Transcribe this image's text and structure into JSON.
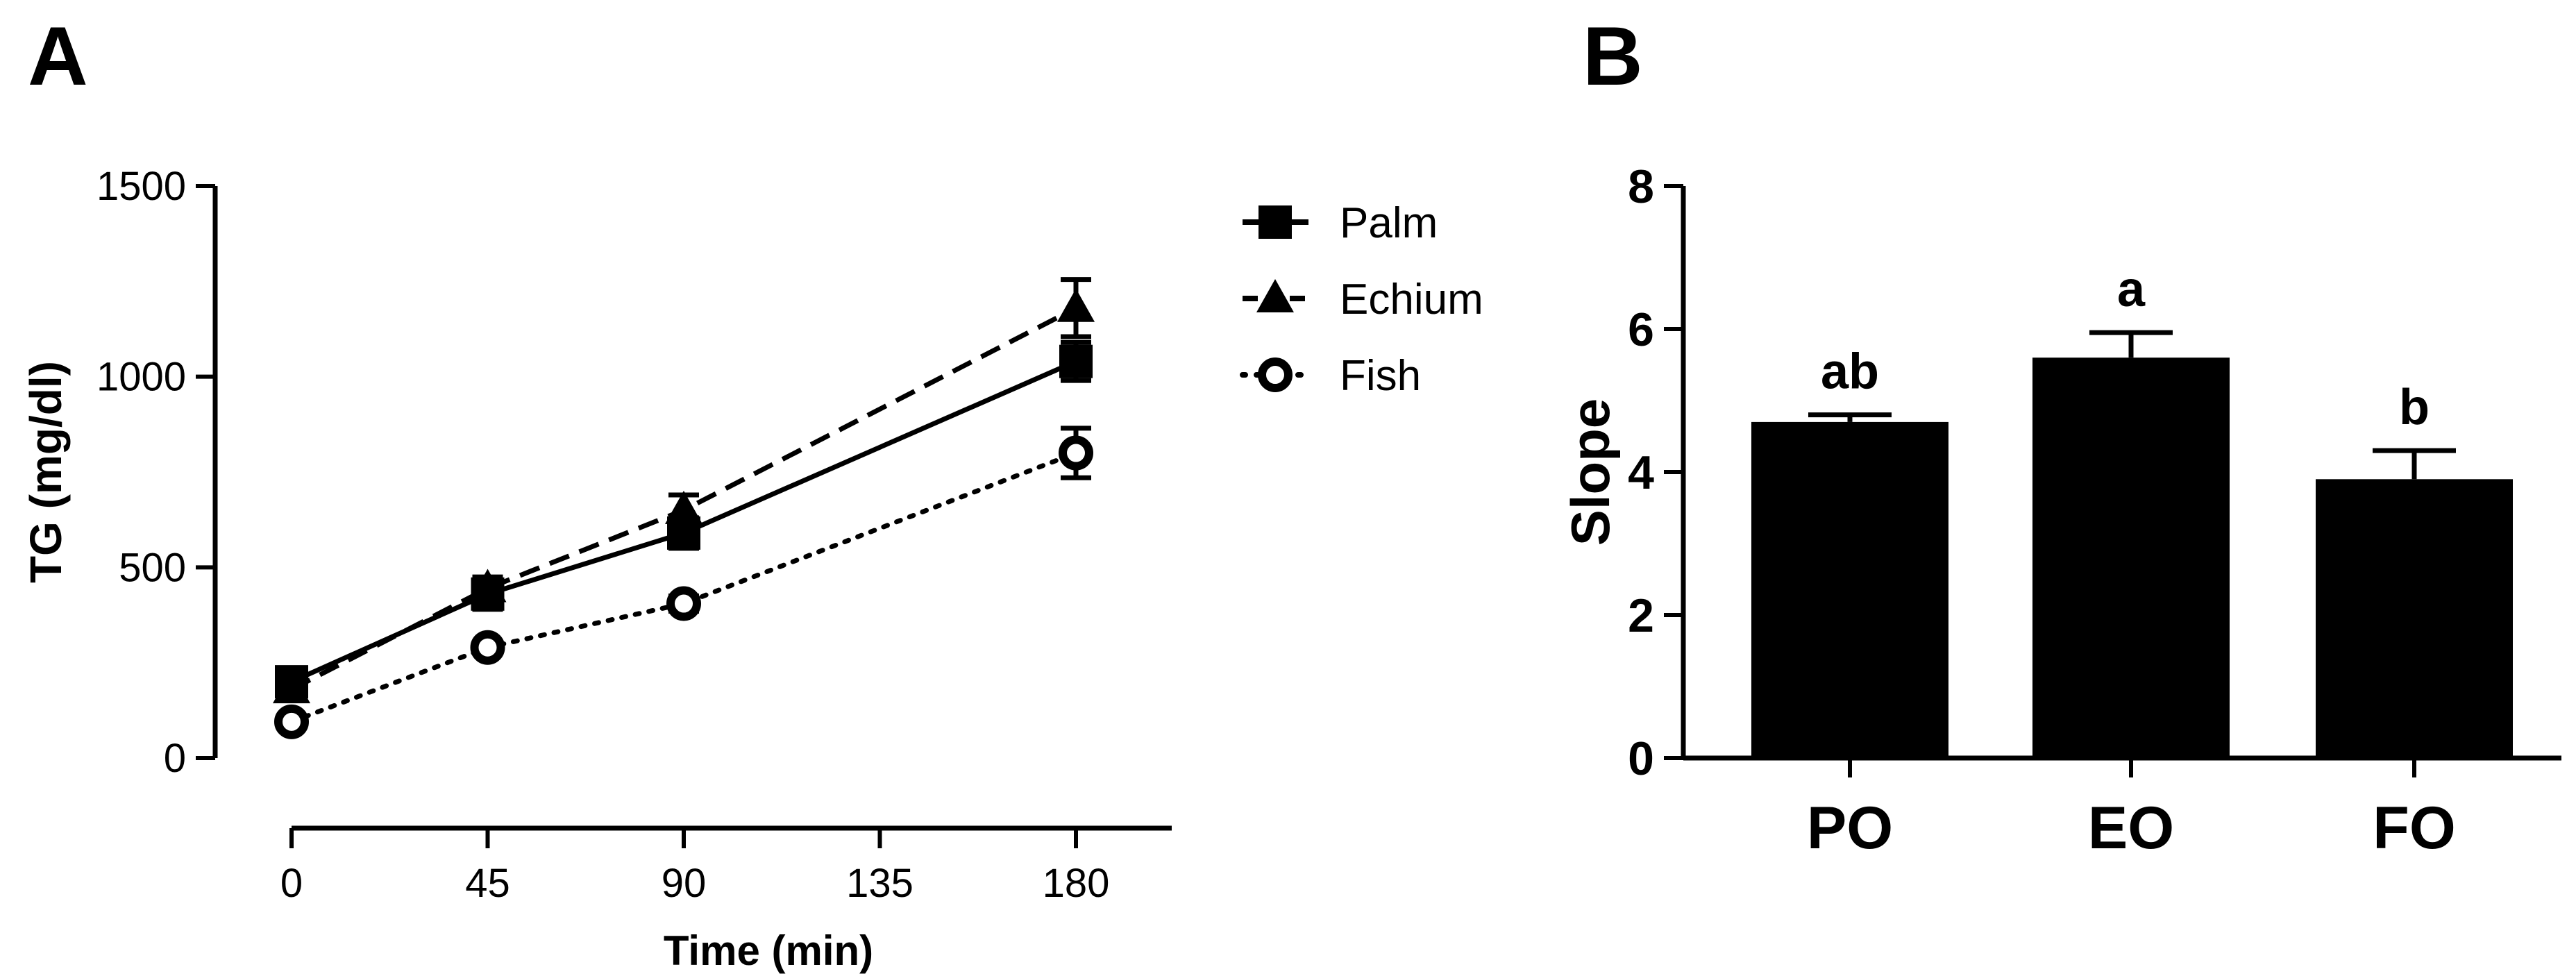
{
  "chart_data": [
    {
      "panel_label": "A",
      "type": "line",
      "title": "",
      "xlabel": "Time (min)",
      "ylabel": "TG (mg/dl)",
      "x": [
        0,
        45,
        90,
        180
      ],
      "xticks": [
        "0",
        "45",
        "90",
        "135",
        "180"
      ],
      "xtick_values": [
        0,
        45,
        90,
        135,
        180
      ],
      "xlim": [
        0,
        200
      ],
      "yticks": [
        "0",
        "500",
        "1000",
        "1500"
      ],
      "ytick_values": [
        0,
        500,
        1000,
        1500
      ],
      "ylim": [
        0,
        1500
      ],
      "legend_position": "top-right",
      "series": [
        {
          "name": "Palm",
          "marker": "square",
          "line_style": "solid",
          "values": [
            200,
            430,
            590,
            1040
          ],
          "errors": [
            20,
            40,
            40,
            50
          ]
        },
        {
          "name": "Echium",
          "marker": "triangle",
          "line_style": "dashed",
          "values": [
            180,
            445,
            650,
            1180
          ],
          "errors": [
            20,
            30,
            40,
            75
          ]
        },
        {
          "name": "Fish",
          "marker": "circle",
          "line_style": "dotted",
          "values": [
            95,
            290,
            405,
            800
          ],
          "errors": [
            15,
            15,
            20,
            65
          ]
        }
      ]
    },
    {
      "panel_label": "B",
      "type": "bar",
      "title": "",
      "xlabel": "",
      "ylabel": "Slope",
      "categories": [
        "PO",
        "EO",
        "FO"
      ],
      "values": [
        4.7,
        5.6,
        3.9
      ],
      "errors": [
        0.1,
        0.35,
        0.4
      ],
      "annotations": [
        "ab",
        "a",
        "b"
      ],
      "yticks": [
        "0",
        "2",
        "4",
        "6",
        "8"
      ],
      "ytick_values": [
        0,
        2,
        4,
        6,
        8
      ],
      "ylim": [
        0,
        8
      ]
    }
  ]
}
